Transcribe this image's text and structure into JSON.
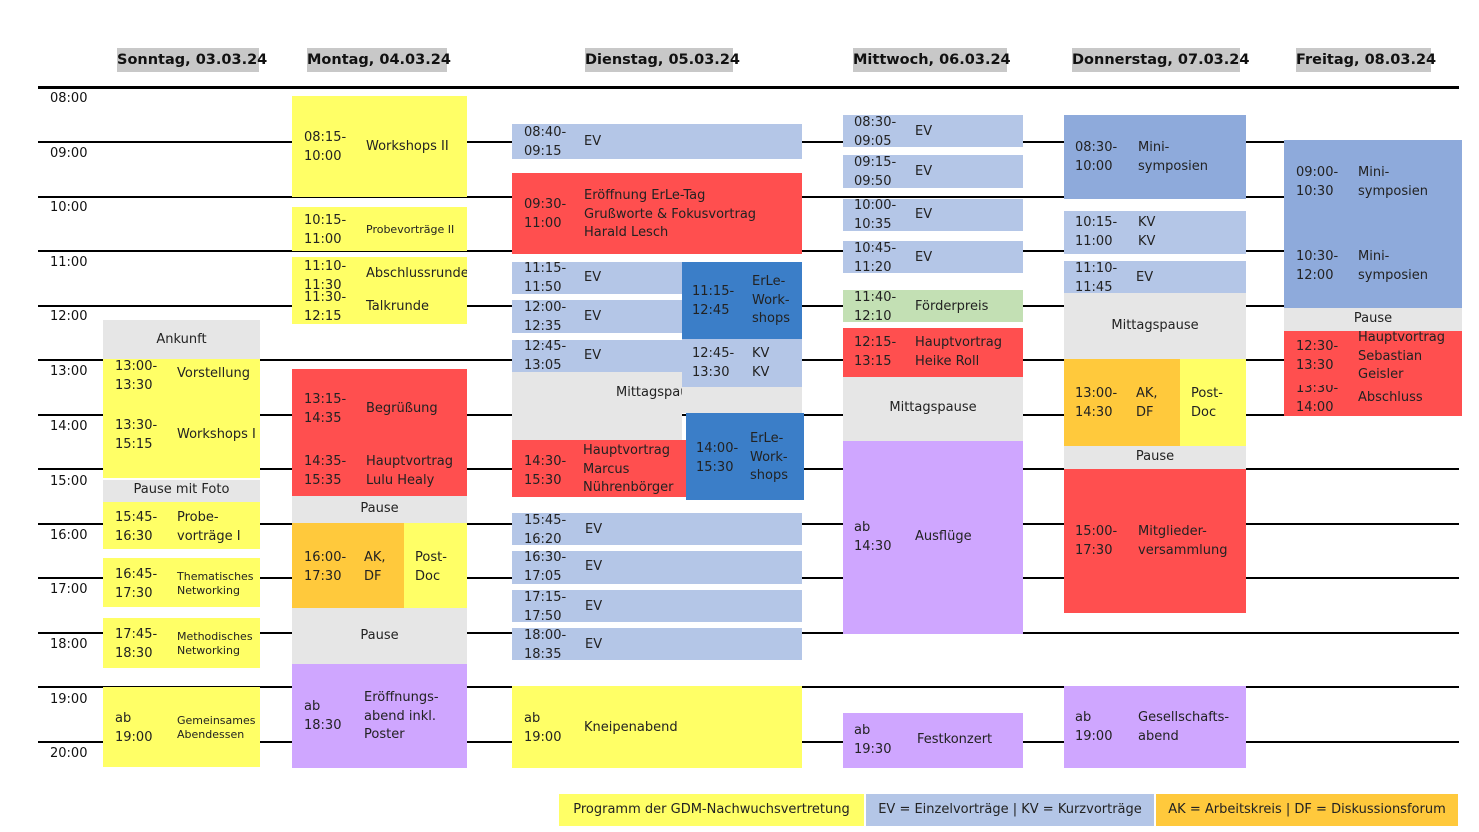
{
  "days": [
    "Sonntag, 03.03.24",
    "Montag, 04.03.24",
    "Dienstag, 05.03.24",
    "Mittwoch, 06.03.24",
    "Donnerstag, 07.03.24",
    "Freitag, 08.03.24"
  ],
  "times": [
    "08:00",
    "09:00",
    "10:00",
    "11:00",
    "12:00",
    "13:00",
    "14:00",
    "15:00",
    "16:00",
    "17:00",
    "18:00",
    "19:00",
    "20:00"
  ],
  "sonntag": {
    "ankunft": "Ankunft",
    "vorstellung": {
      "time": "13:00-\n13:30",
      "title": "Vorstellung"
    },
    "workshops": {
      "time": "13:30-\n15:15",
      "title": "Workshops I"
    },
    "pause": "Pause mit Foto",
    "probe": {
      "time": "15:45-\n16:30",
      "title": "Probe-\nvorträge I"
    },
    "thematisch": {
      "time": "16:45-\n17:30",
      "title": "Thematisches\nNetworking"
    },
    "methodisch": {
      "time": "17:45-\n18:30",
      "title": "Methodisches\nNetworking"
    },
    "abend": {
      "time": "ab\n19:00",
      "title": "Gemeinsames\nAbendessen"
    }
  },
  "montag": {
    "workshops": {
      "time": "08:15-\n10:00",
      "title": "Workshops II"
    },
    "probe": {
      "time": "10:15-\n11:00",
      "title": "Probevorträge II"
    },
    "abschluss": {
      "time": "11:10-\n11:30",
      "title": "Abschlussrunde"
    },
    "talk": {
      "time": "11:30-\n12:15",
      "title": "Talkrunde"
    },
    "begruessung": {
      "time": "13:15-\n14:35",
      "title": "Begrüßung"
    },
    "hauptvortrag": {
      "time": "14:35-\n15:35",
      "title": "Hauptvortrag\nLulu Healy"
    },
    "pause1": "Pause",
    "akdf": {
      "time": "16:00-\n17:30",
      "title": "AK,\nDF"
    },
    "postdoc": "Post-\nDoc",
    "pause2": "Pause",
    "abend": {
      "time": "ab\n18:30",
      "title": "Eröffnungs-\nabend inkl.\nPoster"
    }
  },
  "dienstag": {
    "ev1": {
      "time": "08:40-\n09:15",
      "title": "EV"
    },
    "eroeffnung": {
      "time": "09:30-\n11:00",
      "title": "Eröffnung ErLe-Tag\nGrußworte & Fokusvortrag\nHarald Lesch"
    },
    "ev2": {
      "time": "11:15-\n11:50",
      "title": "EV"
    },
    "ev3": {
      "time": "12:00-\n12:35",
      "title": "EV"
    },
    "ev4": {
      "time": "12:45-\n13:05",
      "title": "EV"
    },
    "erle1": {
      "time": "11:15-\n12:45",
      "title": "ErLe-\nWork-\nshops"
    },
    "kv": {
      "time": "12:45-\n13:30",
      "title": "KV\nKV"
    },
    "mittag": "Mittagspause",
    "hauptvortrag": {
      "time": "14:30-\n15:30",
      "title": "Hauptvortrag\nMarcus\nNührenbörger"
    },
    "erle2": {
      "time": "14:00-\n15:30",
      "title": "ErLe-\nWork-\nshops"
    },
    "ev5": {
      "time": "15:45-\n16:20",
      "title": "EV"
    },
    "ev6": {
      "time": "16:30-\n17:05",
      "title": "EV"
    },
    "ev7": {
      "time": "17:15-\n17:50",
      "title": "EV"
    },
    "ev8": {
      "time": "18:00-\n18:35",
      "title": "EV"
    },
    "kneipe": {
      "time": "ab\n19:00",
      "title": "Kneipenabend"
    }
  },
  "mittwoch": {
    "ev1": {
      "time": "08:30-\n09:05",
      "title": "EV"
    },
    "ev2": {
      "time": "09:15-\n09:50",
      "title": "EV"
    },
    "ev3": {
      "time": "10:00-\n10:35",
      "title": "EV"
    },
    "ev4": {
      "time": "10:45-\n11:20",
      "title": "EV"
    },
    "foerder": {
      "time": "11:40-\n12:10",
      "title": "Förderpreis"
    },
    "hauptvortrag": {
      "time": "12:15-\n13:15",
      "title": "Hauptvortrag\nHeike Roll"
    },
    "mittag": "Mittagspause",
    "ausfluege": {
      "time": "ab\n14:30",
      "title": "Ausflüge"
    },
    "konzert": {
      "time": "ab\n19:30",
      "title": "Festkonzert"
    }
  },
  "donnerstag": {
    "mini": {
      "time": "08:30-\n10:00",
      "title": "Mini-\nsymposien"
    },
    "kv": {
      "time": "10:15-\n11:00",
      "title": "KV\nKV"
    },
    "ev": {
      "time": "11:10-\n11:45",
      "title": "EV"
    },
    "mittag": "Mittagspause",
    "akdf": {
      "time": "13:00-\n14:30",
      "title": "AK,\nDF"
    },
    "postdoc": "Post-\nDoc",
    "pause": "Pause",
    "mv": {
      "time": "15:00-\n17:30",
      "title": "Mitglieder-\nversammlung"
    },
    "gesellschaft": {
      "time": "ab\n19:00",
      "title": "Gesellschafts-\nabend"
    }
  },
  "freitag": {
    "mini1": {
      "time": "09:00-\n10:30",
      "title": "Mini-\nsymposien"
    },
    "mini2": {
      "time": "10:30-\n12:00",
      "title": "Mini-\nsymposien"
    },
    "pause": "Pause",
    "hauptvortrag": {
      "time": "12:30-\n13:30",
      "title": "Hauptvortrag\nSebastian\nGeisler"
    },
    "abschluss": {
      "time": "13:30-\n14:00",
      "title": "Abschluss"
    }
  },
  "legend": {
    "nachwuchs": "Programm der GDM-Nachwuchsvertretung",
    "ev_kv": "EV = Einzelvorträge | KV = Kurzvorträge",
    "ak_df": "AK = Arbeitskreis | DF = Diskussionsforum"
  },
  "colors": {
    "nachwuchs": "#ffff66",
    "hauptvortrag": "#ff4f4f",
    "vortraege": "#b4c6e7",
    "minisymposien": "#8eaadb",
    "erle": "#3b7ec8",
    "pause": "#e6e6e6",
    "abend": "#cfa6ff",
    "ak_df": "#ffc93c",
    "foerderpreis": "#c3e0b4"
  }
}
